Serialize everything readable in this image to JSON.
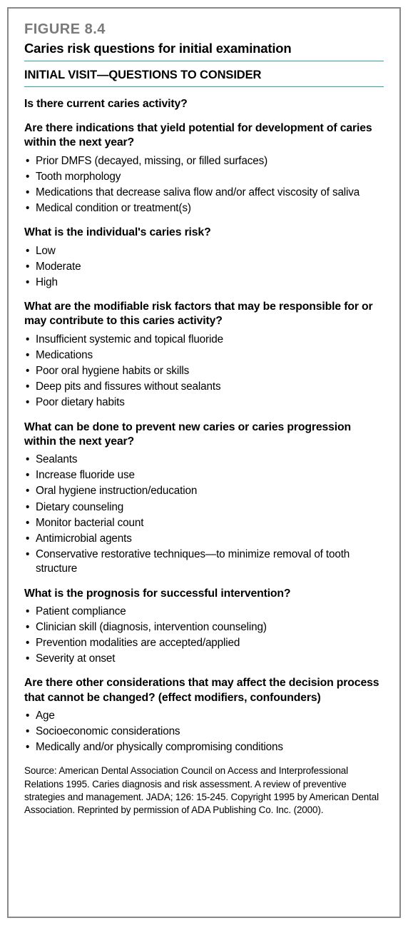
{
  "figure": {
    "label": "FIGURE 8.4",
    "title": "Caries risk questions for initial examination",
    "section_heading": "INITIAL VISIT—QUESTIONS TO CONSIDER",
    "questions": [
      {
        "text": "Is there current caries activity?",
        "items": []
      },
      {
        "text": "Are there indications that yield potential for development of caries within the next year?",
        "items": [
          "Prior DMFS (decayed, missing, or filled surfaces)",
          "Tooth morphology",
          "Medications that decrease saliva flow and/or affect viscosity of saliva",
          "Medical condition or treatment(s)"
        ]
      },
      {
        "text": "What is the individual's caries risk?",
        "items": [
          "Low",
          "Moderate",
          "High"
        ]
      },
      {
        "text": "What are the modifiable risk factors that may be responsible for or may contribute to this caries activity?",
        "items": [
          "Insufficient systemic and topical fluoride",
          "Medications",
          "Poor oral hygiene habits or skills",
          "Deep pits and fissures without sealants",
          "Poor dietary habits"
        ]
      },
      {
        "text": "What can be done to prevent new caries or caries progression within the next year?",
        "items": [
          "Sealants",
          "Increase fluoride use",
          "Oral hygiene instruction/education",
          "Dietary counseling",
          "Monitor bacterial count",
          "Antimicrobial agents",
          "Conservative restorative techniques—to minimize removal of tooth structure"
        ]
      },
      {
        "text": "What is the prognosis for successful intervention?",
        "items": [
          "Patient compliance",
          "Clinician skill (diagnosis, intervention counseling)",
          "Prevention modalities are accepted/applied",
          "Severity at onset"
        ]
      },
      {
        "text": "Are there other considerations that may affect the decision process that cannot be changed? (effect modifiers, confounders)",
        "items": [
          "Age",
          "Socioeconomic considerations",
          "Medically and/or physically compromising conditions"
        ]
      }
    ],
    "source": "Source:  American Dental Association Council on Access and Interprofessional Relations 1995. Caries diagnosis and risk assessment. A review of preventive strategies and management. JADA; 126: 15-245. Copyright 1995 by American Dental Association. Reprinted by permission of ADA Publishing Co. Inc. (2000)."
  },
  "style": {
    "border_color": "#888888",
    "rule_color": "#2aa79b",
    "label_color": "#7a7a7a",
    "text_color": "#000000",
    "background": "#ffffff",
    "font_family": "Myriad Pro / Segoe UI / Helvetica Neue",
    "label_fontsize_pt": 15,
    "title_fontsize_pt": 14,
    "heading_fontsize_pt": 12.5,
    "question_fontsize_pt": 12,
    "bullet_fontsize_pt": 11.5,
    "source_fontsize_pt": 10
  }
}
